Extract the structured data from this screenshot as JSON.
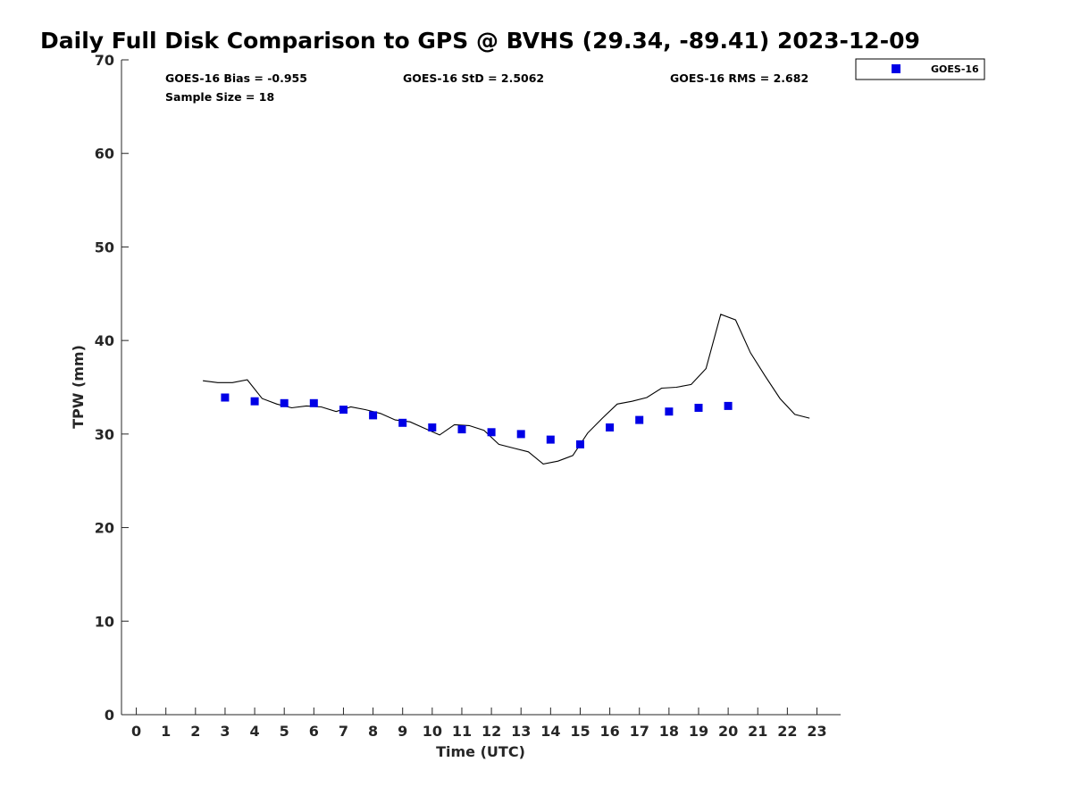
{
  "chart_data": {
    "type": "scatter",
    "title": "Daily Full Disk Comparison to GPS @ BVHS (29.34, -89.41) 2023-12-09",
    "xlabel": "Time (UTC)",
    "ylabel": "TPW (mm)",
    "xlim": [
      -0.5,
      23.8
    ],
    "ylim": [
      0,
      70
    ],
    "xticks": [
      0,
      1,
      2,
      3,
      4,
      5,
      6,
      7,
      8,
      9,
      10,
      11,
      12,
      13,
      14,
      15,
      16,
      17,
      18,
      19,
      20,
      21,
      22,
      23
    ],
    "yticks": [
      0,
      10,
      20,
      30,
      40,
      50,
      60,
      70
    ],
    "grid": false,
    "legend_position": "top-right, outside plot",
    "stats": {
      "bias": "GOES-16 Bias = -0.955",
      "std": "GOES-16 StD = 2.5062",
      "rms": "GOES-16 RMS = 2.682",
      "sample_size": "Sample Size = 18"
    },
    "series": [
      {
        "name": "GOES-16",
        "kind": "scatter",
        "marker": "square",
        "color": "#0000e6",
        "x": [
          3,
          4,
          5,
          6,
          7,
          8,
          9,
          10,
          11,
          12,
          13,
          14,
          15,
          16,
          17,
          18,
          19,
          20
        ],
        "y": [
          33.9,
          33.5,
          33.3,
          33.3,
          32.6,
          32.0,
          31.2,
          30.7,
          30.5,
          30.2,
          30.0,
          29.4,
          28.9,
          30.7,
          31.5,
          32.4,
          32.8,
          33.0
        ]
      },
      {
        "kind": "line",
        "color": "#000000",
        "x": [
          2.25,
          2.75,
          3.25,
          3.75,
          4.25,
          4.75,
          5.25,
          5.75,
          6.25,
          6.75,
          7.25,
          7.75,
          8.25,
          8.75,
          9.25,
          9.75,
          10.25,
          10.75,
          11.25,
          11.75,
          12.25,
          12.75,
          13.25,
          13.75,
          14.25,
          14.75,
          15.25,
          15.75,
          16.25,
          16.75,
          17.25,
          17.75,
          18.25,
          18.75,
          19.25,
          19.75,
          20.25,
          20.75,
          21.25,
          21.75,
          22.25,
          22.75
        ],
        "y": [
          35.7,
          35.5,
          35.5,
          35.8,
          33.8,
          33.2,
          32.8,
          33.0,
          32.9,
          32.4,
          32.9,
          32.6,
          32.2,
          31.5,
          31.3,
          30.6,
          29.9,
          31.0,
          30.9,
          30.4,
          28.9,
          28.5,
          28.1,
          26.8,
          27.1,
          27.7,
          30.1,
          31.7,
          33.2,
          33.5,
          33.9,
          34.9,
          35.0,
          35.3,
          37.0,
          42.8,
          42.2,
          38.7,
          36.2,
          33.8,
          32.1,
          31.7
        ]
      }
    ]
  },
  "colors": {
    "marker": "#0000e6",
    "line": "#000000",
    "axis": "#262626"
  }
}
